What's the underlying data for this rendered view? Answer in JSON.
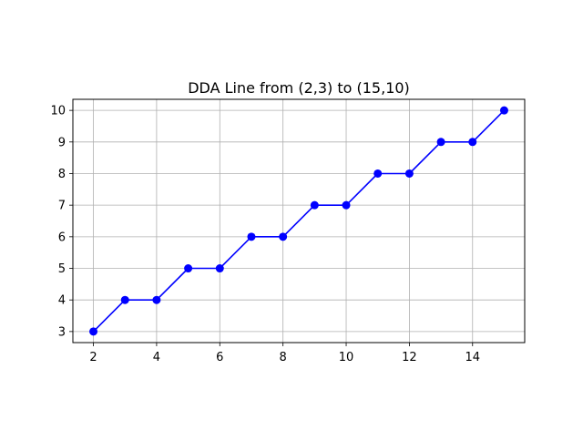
{
  "chart_data": {
    "type": "line",
    "title": "DDA Line from (2,3) to (15,10)",
    "xlabel": "",
    "ylabel": "",
    "x": [
      2,
      3,
      4,
      5,
      6,
      7,
      8,
      9,
      10,
      11,
      12,
      13,
      14,
      15
    ],
    "y": [
      3,
      4,
      4,
      5,
      5,
      6,
      6,
      7,
      7,
      8,
      8,
      9,
      9,
      10
    ],
    "xlim": [
      1.35,
      15.65
    ],
    "ylim": [
      2.65,
      10.35
    ],
    "xticks": [
      2,
      4,
      6,
      8,
      10,
      12,
      14
    ],
    "yticks": [
      3,
      4,
      5,
      6,
      7,
      8,
      9,
      10
    ],
    "grid": true,
    "marker": "circle",
    "color": "#0000ff"
  }
}
